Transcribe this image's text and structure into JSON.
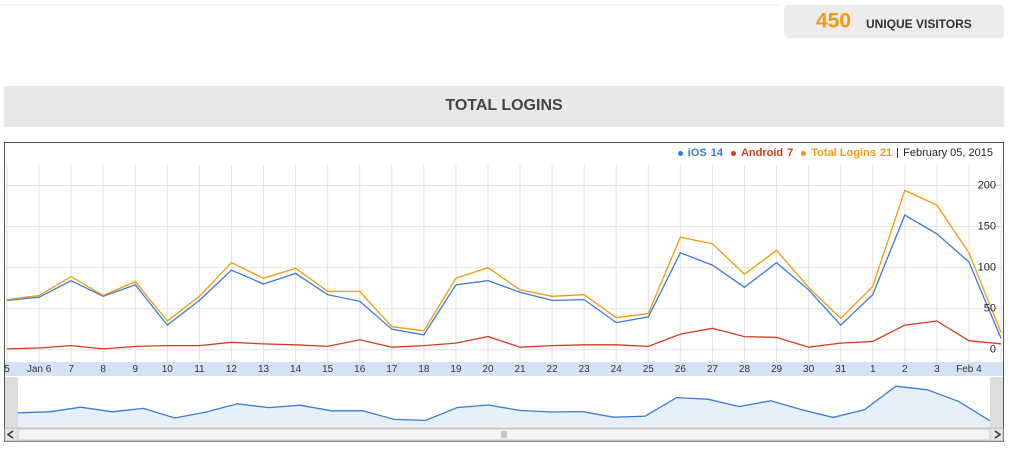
{
  "header": {
    "unique_visitors": 450,
    "unique_visitors_label": "UNIQUE VISITORS"
  },
  "section_title": "TOTAL LOGINS",
  "chart_data": {
    "type": "line",
    "date_label": "February 05, 2015",
    "categories": [
      "5",
      "Jan 6",
      "7",
      "8",
      "9",
      "10",
      "11",
      "12",
      "13",
      "14",
      "15",
      "16",
      "17",
      "18",
      "19",
      "20",
      "21",
      "22",
      "23",
      "24",
      "25",
      "26",
      "27",
      "28",
      "29",
      "30",
      "31",
      "1",
      "2",
      "3",
      "Feb 4",
      null
    ],
    "series": [
      {
        "name": "iOS",
        "color": "#3a7bd5",
        "current": 14,
        "values": [
          60,
          64,
          84,
          65,
          79,
          30,
          60,
          97,
          80,
          93,
          67,
          59,
          25,
          18,
          79,
          84,
          70,
          60,
          61,
          33,
          40,
          118,
          103,
          76,
          106,
          73,
          30,
          67,
          164,
          141,
          107,
          14
        ]
      },
      {
        "name": "Android",
        "color": "#d23c1e",
        "current": 7,
        "values": [
          1,
          2,
          5,
          1,
          4,
          5,
          5,
          9,
          7,
          6,
          4,
          12,
          3,
          5,
          8,
          16,
          3,
          5,
          6,
          6,
          4,
          19,
          26,
          16,
          15,
          3,
          8,
          10,
          30,
          35,
          11,
          7
        ]
      },
      {
        "name": "Total Logins",
        "color": "#f29a0c",
        "current": 21,
        "values": [
          61,
          66,
          89,
          66,
          83,
          35,
          65,
          106,
          87,
          99,
          71,
          71,
          28,
          23,
          87,
          100,
          73,
          65,
          67,
          39,
          44,
          137,
          129,
          92,
          121,
          76,
          38,
          77,
          194,
          176,
          118,
          21
        ]
      }
    ],
    "ylim": [
      -15,
      225
    ],
    "yticks": [
      0,
      50,
      100,
      150,
      200
    ],
    "grid": true
  }
}
